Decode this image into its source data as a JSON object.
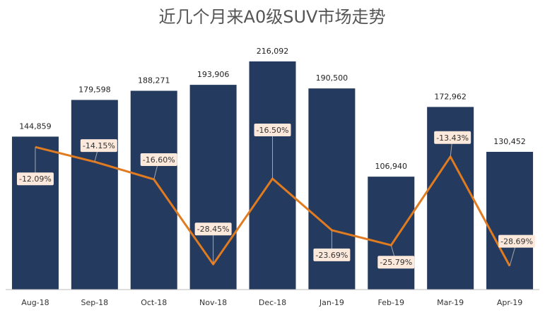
{
  "chart_data": {
    "type": "bar",
    "title": "近几个月来A0级SUV市场走势",
    "categories": [
      "Aug-18",
      "Sep-18",
      "Oct-18",
      "Nov-18",
      "Dec-18",
      "Jan-19",
      "Feb-19",
      "Mar-19",
      "Apr-19"
    ],
    "series": [
      {
        "type": "bar",
        "values": [
          144859,
          179598,
          188271,
          193906,
          216092,
          190500,
          106940,
          172962,
          130452
        ],
        "labels": [
          "144,859",
          "179,598",
          "188,271",
          "193,906",
          "216,092",
          "190,500",
          "106,940",
          "172,962",
          "130,452"
        ],
        "color": "#243A5E"
      },
      {
        "type": "line",
        "values": [
          -12.09,
          -14.15,
          -16.6,
          -28.45,
          -16.5,
          -23.69,
          -25.79,
          -13.43,
          -28.69
        ],
        "labels": [
          "-12.09%",
          "-14.15%",
          "-16.60%",
          "-28.45%",
          "-16.50%",
          "-23.69%",
          "-25.79%",
          "-13.43%",
          "-28.69%"
        ],
        "color": "#E07B1F",
        "label_bg": "#FCE9DB"
      }
    ],
    "ylim_bar": [
      0,
      240000
    ],
    "ylim_line": [
      -30.5,
      -10
    ],
    "grid": false,
    "legend": "none"
  }
}
